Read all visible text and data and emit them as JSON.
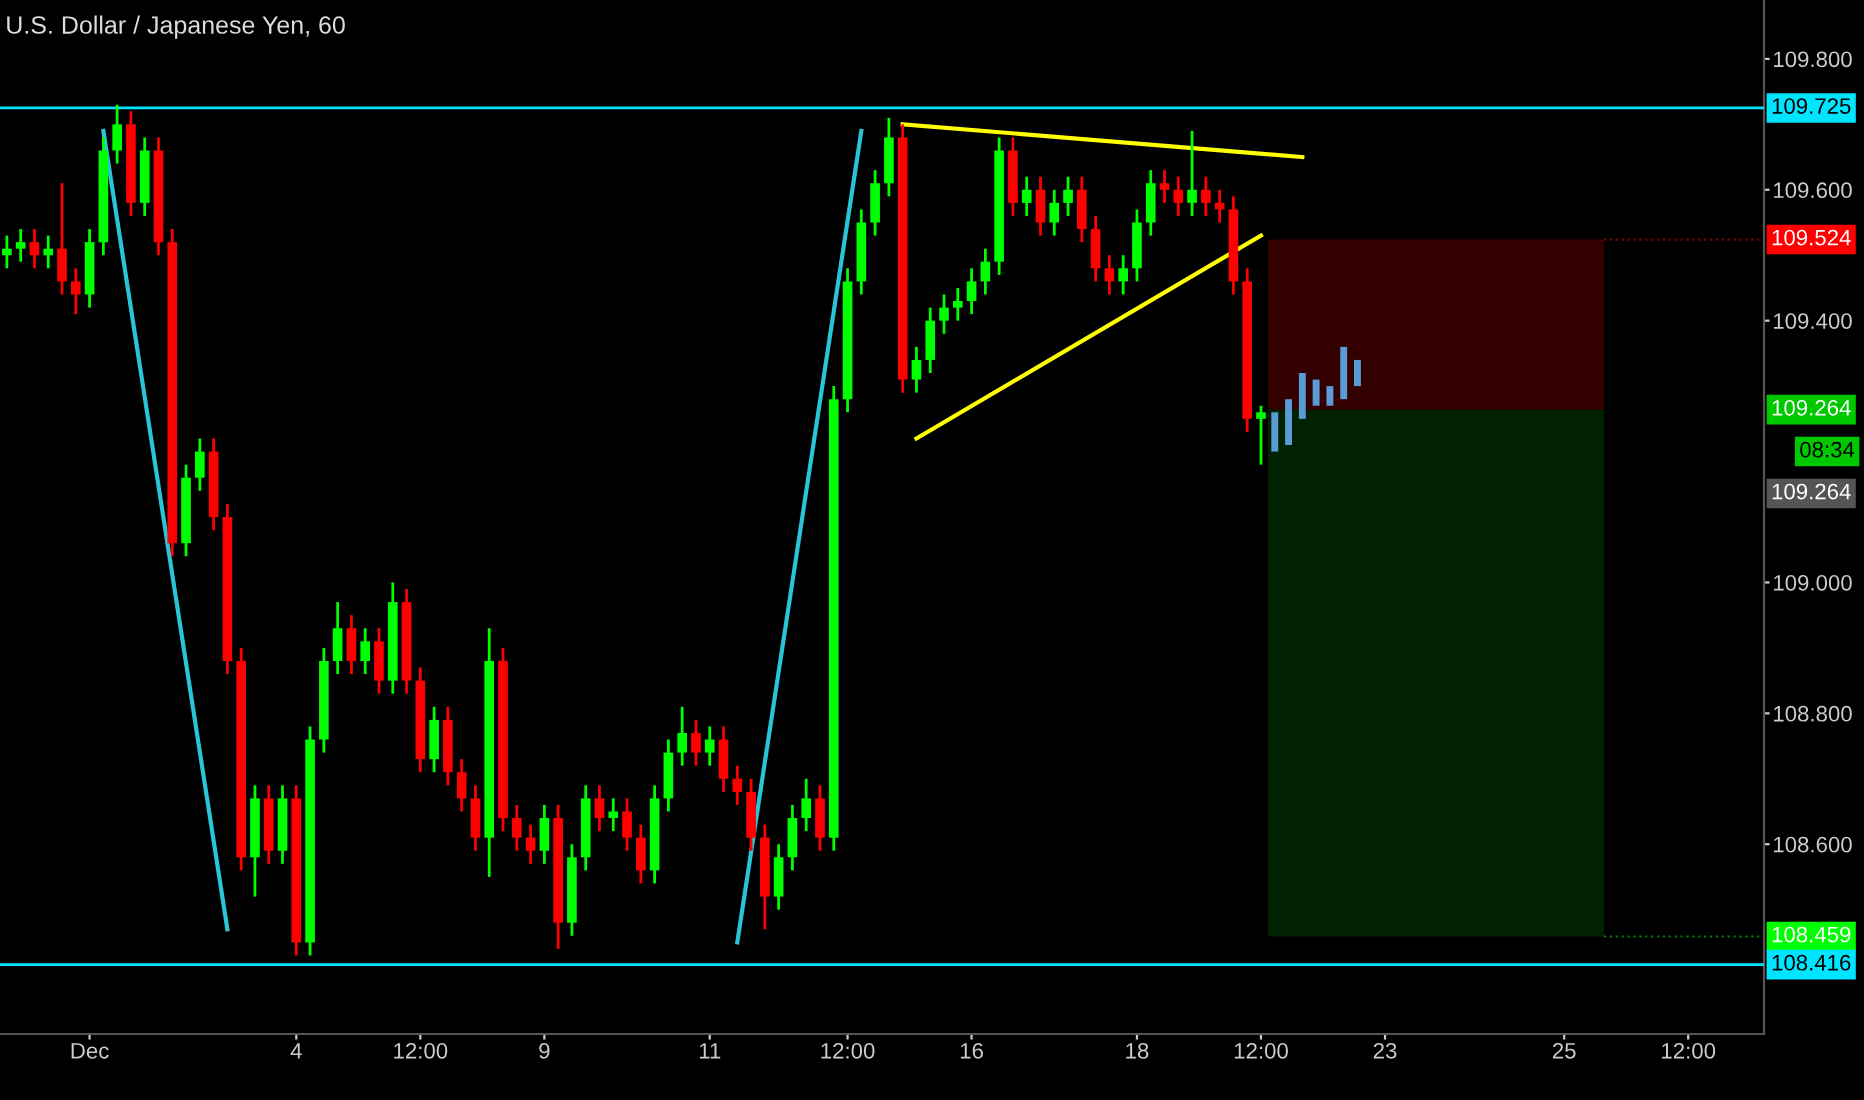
{
  "chart_data": {
    "type": "candlestick",
    "title": "U.S. Dollar / Japanese Yen, 60",
    "categories": [
      null,
      null,
      null,
      null,
      null,
      null,
      "Dec",
      null,
      null,
      null,
      null,
      null,
      null,
      null,
      null,
      null,
      null,
      null,
      null,
      null,
      null,
      "4",
      null,
      null,
      null,
      null,
      null,
      null,
      null,
      null,
      "12:00",
      null,
      null,
      null,
      null,
      null,
      null,
      null,
      null,
      "9",
      null,
      null,
      null,
      null,
      null,
      null,
      null,
      null,
      null,
      null,
      null,
      "11",
      null,
      null,
      null,
      null,
      null,
      null,
      null,
      null,
      null,
      "12:00",
      null,
      null,
      null,
      null,
      null,
      null,
      null,
      null,
      "16",
      null,
      null,
      null,
      null,
      null,
      null,
      null,
      null,
      null,
      null,
      null,
      "18",
      null,
      null,
      null,
      null,
      null,
      null,
      null,
      null,
      "12:00",
      null,
      null,
      null,
      null,
      null,
      null,
      null,
      null,
      "23",
      null,
      null,
      null,
      null,
      null,
      null,
      null,
      null,
      null,
      null,
      null,
      null,
      "25",
      null,
      null,
      null,
      null,
      null,
      null,
      null,
      null,
      "12:00",
      null,
      null,
      null,
      null,
      null
    ],
    "ohlc": [
      [
        109.5,
        109.53,
        109.48,
        109.51
      ],
      [
        109.51,
        109.54,
        109.49,
        109.52
      ],
      [
        109.52,
        109.54,
        109.48,
        109.5
      ],
      [
        109.5,
        109.53,
        109.48,
        109.51
      ],
      [
        109.51,
        109.61,
        109.44,
        109.46
      ],
      [
        109.46,
        109.48,
        109.41,
        109.44
      ],
      [
        109.44,
        109.54,
        109.42,
        109.52
      ],
      [
        109.52,
        109.68,
        109.5,
        109.66
      ],
      [
        109.66,
        109.73,
        109.64,
        109.7
      ],
      [
        109.7,
        109.72,
        109.56,
        109.58
      ],
      [
        109.58,
        109.68,
        109.56,
        109.66
      ],
      [
        109.66,
        109.68,
        109.5,
        109.52
      ],
      [
        109.52,
        109.54,
        109.04,
        109.06
      ],
      [
        109.06,
        109.18,
        109.04,
        109.16
      ],
      [
        109.16,
        109.22,
        109.14,
        109.2
      ],
      [
        109.2,
        109.22,
        109.08,
        109.1
      ],
      [
        109.1,
        109.12,
        108.86,
        108.88
      ],
      [
        108.88,
        108.9,
        108.56,
        108.58
      ],
      [
        108.58,
        108.69,
        108.52,
        108.67
      ],
      [
        108.67,
        108.69,
        108.57,
        108.59
      ],
      [
        108.59,
        108.69,
        108.57,
        108.67
      ],
      [
        108.67,
        108.69,
        108.43,
        108.45
      ],
      [
        108.45,
        108.78,
        108.43,
        108.76
      ],
      [
        108.76,
        108.9,
        108.74,
        108.88
      ],
      [
        108.88,
        108.97,
        108.86,
        108.93
      ],
      [
        108.93,
        108.95,
        108.86,
        108.88
      ],
      [
        108.88,
        108.93,
        108.86,
        108.91
      ],
      [
        108.91,
        108.93,
        108.83,
        108.85
      ],
      [
        108.85,
        109.0,
        108.83,
        108.97
      ],
      [
        108.97,
        108.99,
        108.83,
        108.85
      ],
      [
        108.85,
        108.87,
        108.71,
        108.73
      ],
      [
        108.73,
        108.81,
        108.71,
        108.79
      ],
      [
        108.79,
        108.81,
        108.69,
        108.71
      ],
      [
        108.71,
        108.73,
        108.65,
        108.67
      ],
      [
        108.67,
        108.69,
        108.59,
        108.61
      ],
      [
        108.61,
        108.93,
        108.55,
        108.88
      ],
      [
        108.88,
        108.9,
        108.62,
        108.64
      ],
      [
        108.64,
        108.66,
        108.59,
        108.61
      ],
      [
        108.61,
        108.63,
        108.57,
        108.59
      ],
      [
        108.59,
        108.66,
        108.57,
        108.64
      ],
      [
        108.64,
        108.66,
        108.44,
        108.48
      ],
      [
        108.48,
        108.6,
        108.46,
        108.58
      ],
      [
        108.58,
        108.69,
        108.56,
        108.67
      ],
      [
        108.67,
        108.69,
        108.62,
        108.64
      ],
      [
        108.64,
        108.67,
        108.62,
        108.65
      ],
      [
        108.65,
        108.67,
        108.59,
        108.61
      ],
      [
        108.61,
        108.63,
        108.54,
        108.56
      ],
      [
        108.56,
        108.69,
        108.54,
        108.67
      ],
      [
        108.67,
        108.76,
        108.65,
        108.74
      ],
      [
        108.74,
        108.81,
        108.72,
        108.77
      ],
      [
        108.77,
        108.79,
        108.72,
        108.74
      ],
      [
        108.74,
        108.78,
        108.72,
        108.76
      ],
      [
        108.76,
        108.78,
        108.68,
        108.7
      ],
      [
        108.7,
        108.72,
        108.66,
        108.68
      ],
      [
        108.68,
        108.7,
        108.59,
        108.61
      ],
      [
        108.61,
        108.63,
        108.47,
        108.52
      ],
      [
        108.52,
        108.6,
        108.5,
        108.58
      ],
      [
        108.58,
        108.66,
        108.56,
        108.64
      ],
      [
        108.64,
        108.7,
        108.62,
        108.67
      ],
      [
        108.67,
        108.69,
        108.59,
        108.61
      ],
      [
        108.61,
        109.3,
        108.59,
        109.28
      ],
      [
        109.28,
        109.48,
        109.26,
        109.46
      ],
      [
        109.46,
        109.57,
        109.44,
        109.55
      ],
      [
        109.55,
        109.63,
        109.53,
        109.61
      ],
      [
        109.61,
        109.71,
        109.59,
        109.68
      ],
      [
        109.68,
        109.7,
        109.29,
        109.31
      ],
      [
        109.31,
        109.36,
        109.29,
        109.34
      ],
      [
        109.34,
        109.42,
        109.32,
        109.4
      ],
      [
        109.4,
        109.44,
        109.38,
        109.42
      ],
      [
        109.42,
        109.45,
        109.4,
        109.43
      ],
      [
        109.43,
        109.48,
        109.41,
        109.46
      ],
      [
        109.46,
        109.51,
        109.44,
        109.49
      ],
      [
        109.49,
        109.68,
        109.47,
        109.66
      ],
      [
        109.66,
        109.68,
        109.56,
        109.58
      ],
      [
        109.58,
        109.62,
        109.56,
        109.6
      ],
      [
        109.6,
        109.62,
        109.53,
        109.55
      ],
      [
        109.55,
        109.6,
        109.53,
        109.58
      ],
      [
        109.58,
        109.62,
        109.56,
        109.6
      ],
      [
        109.6,
        109.62,
        109.52,
        109.54
      ],
      [
        109.54,
        109.56,
        109.46,
        109.48
      ],
      [
        109.48,
        109.5,
        109.44,
        109.46
      ],
      [
        109.46,
        109.5,
        109.44,
        109.48
      ],
      [
        109.48,
        109.57,
        109.46,
        109.55
      ],
      [
        109.55,
        109.63,
        109.53,
        109.61
      ],
      [
        109.61,
        109.63,
        109.58,
        109.6
      ],
      [
        109.6,
        109.62,
        109.56,
        109.58
      ],
      [
        109.58,
        109.69,
        109.56,
        109.6
      ],
      [
        109.6,
        109.62,
        109.56,
        109.58
      ],
      [
        109.58,
        109.6,
        109.55,
        109.57
      ],
      [
        109.57,
        109.59,
        109.44,
        109.46
      ],
      [
        109.46,
        109.48,
        109.23,
        109.25
      ],
      [
        109.25,
        109.27,
        109.18,
        109.26
      ],
      null,
      null,
      null,
      null,
      null,
      null,
      null,
      null,
      null,
      null,
      null,
      null,
      null,
      null,
      null,
      null,
      null,
      null,
      null,
      null,
      null,
      null,
      null,
      null,
      null,
      null,
      null,
      null,
      null,
      null,
      null,
      null,
      null,
      null,
      null,
      null
    ],
    "series": [
      {
        "type": "bar",
        "color": "#5b9bd5",
        "base": [
          null,
          null,
          null,
          null,
          null,
          null,
          null,
          null,
          null,
          null,
          null,
          null,
          null,
          null,
          null,
          null,
          null,
          null,
          null,
          null,
          null,
          null,
          null,
          null,
          null,
          null,
          null,
          null,
          null,
          null,
          null,
          null,
          null,
          null,
          null,
          null,
          null,
          null,
          null,
          null,
          null,
          null,
          null,
          null,
          null,
          null,
          null,
          null,
          null,
          null,
          null,
          null,
          null,
          null,
          null,
          null,
          null,
          null,
          null,
          null,
          null,
          null,
          null,
          null,
          null,
          null,
          null,
          null,
          null,
          null,
          null,
          null,
          null,
          null,
          null,
          null,
          null,
          null,
          null,
          null,
          null,
          null,
          null,
          null,
          null,
          null,
          null,
          null,
          null,
          null,
          null,
          null,
          109.2,
          109.21,
          109.25,
          109.27,
          109.27,
          109.28,
          109.3,
          null,
          null,
          null,
          null,
          null,
          null,
          null,
          null,
          null,
          null,
          null,
          null,
          null,
          null,
          null,
          null,
          null,
          null,
          null,
          null,
          null,
          null,
          null,
          null,
          null,
          null,
          null,
          null,
          null
        ],
        "values": [
          null,
          null,
          null,
          null,
          null,
          null,
          null,
          null,
          null,
          null,
          null,
          null,
          null,
          null,
          null,
          null,
          null,
          null,
          null,
          null,
          null,
          null,
          null,
          null,
          null,
          null,
          null,
          null,
          null,
          null,
          null,
          null,
          null,
          null,
          null,
          null,
          null,
          null,
          null,
          null,
          null,
          null,
          null,
          null,
          null,
          null,
          null,
          null,
          null,
          null,
          null,
          null,
          null,
          null,
          null,
          null,
          null,
          null,
          null,
          null,
          null,
          null,
          null,
          null,
          null,
          null,
          null,
          null,
          null,
          null,
          null,
          null,
          null,
          null,
          null,
          null,
          null,
          null,
          null,
          null,
          null,
          null,
          null,
          null,
          null,
          null,
          null,
          null,
          null,
          null,
          null,
          null,
          0.06,
          0.07,
          0.07,
          0.04,
          0.03,
          0.08,
          0.04,
          null,
          null,
          null,
          null,
          null,
          null,
          null,
          null,
          null,
          null,
          null,
          null,
          null,
          null,
          null,
          null,
          null,
          null,
          null,
          null,
          null,
          null,
          null,
          null,
          null,
          null,
          null,
          null,
          null
        ]
      },
      {
        "type": "line",
        "color": "#29c5d6",
        "values": [
          null,
          null,
          null,
          null,
          null,
          null,
          null,
          109.69,
          null,
          null,
          null,
          null,
          null,
          null,
          null,
          null,
          108.47,
          null,
          null,
          null,
          null,
          null,
          null,
          null,
          null,
          null,
          null,
          null,
          null,
          null,
          null,
          null,
          null,
          null,
          null,
          null,
          null,
          null,
          null,
          null,
          null,
          null,
          null,
          null,
          null,
          null,
          null,
          null,
          null,
          null,
          null,
          null,
          null,
          null,
          null,
          null,
          null,
          null,
          null,
          null,
          null,
          null,
          null,
          null,
          null,
          null,
          null,
          null,
          null,
          null,
          null,
          null,
          null,
          null,
          null,
          null,
          null,
          null,
          null,
          null,
          null,
          null,
          null,
          null,
          null,
          null,
          null,
          null,
          null,
          null,
          null,
          null,
          null,
          null,
          null,
          null,
          null,
          null,
          null,
          null,
          null,
          null,
          null,
          null,
          null,
          null,
          null,
          null,
          null,
          null,
          null,
          null,
          null,
          null,
          null,
          null,
          null,
          null,
          null,
          null,
          null,
          null,
          null,
          null,
          null,
          null,
          null,
          null
        ]
      },
      {
        "type": "line",
        "color": "#29c5d6",
        "values": [
          null,
          null,
          null,
          null,
          null,
          null,
          null,
          null,
          null,
          null,
          null,
          null,
          null,
          null,
          null,
          null,
          null,
          null,
          null,
          null,
          null,
          null,
          null,
          null,
          null,
          null,
          null,
          null,
          null,
          null,
          null,
          null,
          null,
          null,
          null,
          null,
          null,
          null,
          null,
          null,
          null,
          null,
          null,
          null,
          null,
          null,
          null,
          null,
          null,
          null,
          null,
          null,
          null,
          108.45,
          null,
          null,
          null,
          null,
          null,
          null,
          null,
          null,
          109.69,
          null,
          null,
          null,
          null,
          null,
          null,
          null,
          null,
          null,
          null,
          null,
          null,
          null,
          null,
          null,
          null,
          null,
          null,
          null,
          null,
          null,
          null,
          null,
          null,
          null,
          null,
          null,
          null,
          null,
          null,
          null,
          null,
          null,
          null,
          null,
          null,
          null,
          null,
          null,
          null,
          null,
          null,
          null,
          null,
          null,
          null,
          null,
          null,
          null,
          null,
          null,
          null,
          null,
          null,
          null,
          null,
          null,
          null,
          null,
          null,
          null,
          null,
          null,
          null,
          null
        ]
      },
      {
        "type": "line",
        "color": "#ffff00",
        "values": [
          null,
          null,
          null,
          null,
          null,
          null,
          null,
          null,
          null,
          null,
          null,
          null,
          null,
          null,
          null,
          null,
          null,
          null,
          null,
          null,
          null,
          null,
          null,
          null,
          null,
          null,
          null,
          null,
          null,
          null,
          null,
          null,
          null,
          null,
          null,
          null,
          null,
          null,
          null,
          null,
          null,
          null,
          null,
          null,
          null,
          null,
          null,
          null,
          null,
          null,
          null,
          null,
          null,
          null,
          null,
          null,
          null,
          null,
          null,
          null,
          null,
          null,
          null,
          null,
          null,
          109.7,
          null,
          null,
          null,
          null,
          null,
          null,
          null,
          null,
          null,
          null,
          null,
          null,
          null,
          null,
          null,
          null,
          null,
          null,
          null,
          null,
          null,
          null,
          null,
          null,
          null,
          null,
          null,
          null,
          109.65,
          null,
          null,
          null,
          null,
          null,
          null,
          null,
          null,
          null,
          null,
          null,
          null,
          null,
          null,
          null,
          null,
          null,
          null,
          null,
          null,
          null,
          null,
          null,
          null,
          null,
          null,
          null,
          null,
          null,
          null,
          null,
          null,
          null
        ]
      },
      {
        "type": "line",
        "color": "#ffff00",
        "values": [
          null,
          null,
          null,
          null,
          null,
          null,
          null,
          null,
          null,
          null,
          null,
          null,
          null,
          null,
          null,
          null,
          null,
          null,
          null,
          null,
          null,
          null,
          null,
          null,
          null,
          null,
          null,
          null,
          null,
          null,
          null,
          null,
          null,
          null,
          null,
          null,
          null,
          null,
          null,
          null,
          null,
          null,
          null,
          null,
          null,
          null,
          null,
          null,
          null,
          null,
          null,
          null,
          null,
          null,
          null,
          null,
          null,
          null,
          null,
          null,
          null,
          null,
          null,
          null,
          null,
          null,
          109.22,
          null,
          null,
          null,
          null,
          null,
          null,
          null,
          null,
          null,
          null,
          null,
          null,
          null,
          null,
          null,
          null,
          null,
          null,
          null,
          null,
          null,
          null,
          null,
          null,
          109.53,
          null,
          null,
          null,
          null,
          null,
          null,
          null,
          null,
          null,
          null,
          null,
          null,
          null,
          null,
          null,
          null,
          null,
          null,
          null,
          null,
          null,
          null,
          null,
          null,
          null,
          null,
          null,
          null,
          null,
          null,
          null,
          null,
          null,
          null,
          null,
          null
        ]
      }
    ],
    "ylim": [
      108.31,
      109.89
    ],
    "yticks": [
      {
        "value": 108.6,
        "label": "108.600"
      },
      {
        "value": 108.8,
        "label": "108.800"
      },
      {
        "value": 109.0,
        "label": "109.000"
      },
      {
        "value": 109.4,
        "label": "109.400"
      },
      {
        "value": 109.6,
        "label": "109.600"
      },
      {
        "value": 109.8,
        "label": "109.800"
      }
    ],
    "ref_lines": [
      {
        "axis": "y",
        "value": 109.725,
        "label": "109.725",
        "color": "#00e5ff"
      },
      {
        "axis": "y",
        "value": 108.416,
        "label": "108.416",
        "color": "#00e5ff"
      }
    ],
    "bands": [
      {
        "axis": "y",
        "from": 109.264,
        "to": 109.524,
        "label": "109.524",
        "color": "#330000"
      },
      {
        "axis": "y",
        "from": 108.459,
        "to": 109.264,
        "label": "108.459",
        "color": "#002200"
      }
    ],
    "annotations": [
      "109.264",
      "08:34",
      "109.264"
    ],
    "grid": false
  }
}
